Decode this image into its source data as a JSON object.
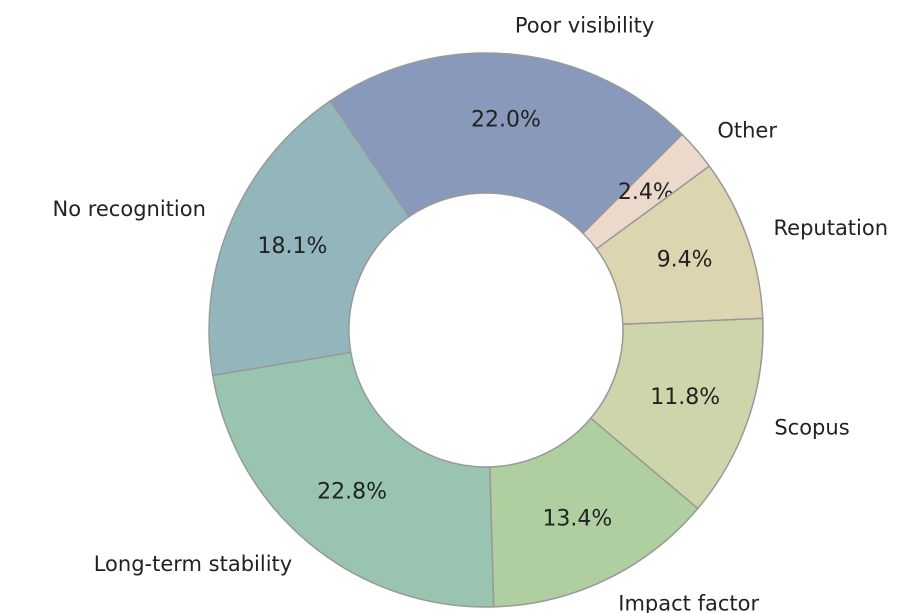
{
  "chart_data": {
    "type": "pie",
    "donut": true,
    "startangle": 124.2,
    "counterclock": false,
    "categories": [
      "Poor visibility",
      "Other",
      "Reputation",
      "Scopus",
      "Impact factor",
      "Long-term stability",
      "No recognition"
    ],
    "values": [
      22.0,
      2.4,
      9.4,
      11.8,
      13.4,
      22.8,
      18.1
    ],
    "value_labels": [
      "22.0%",
      "2.4%",
      "9.4%",
      "11.8%",
      "13.4%",
      "22.8%",
      "18.1%"
    ],
    "colors": [
      "#8899bb",
      "#ecd9cc",
      "#ddd5b0",
      "#cdd6aa",
      "#afcfa0",
      "#99c4b0",
      "#92b6bc"
    ]
  }
}
